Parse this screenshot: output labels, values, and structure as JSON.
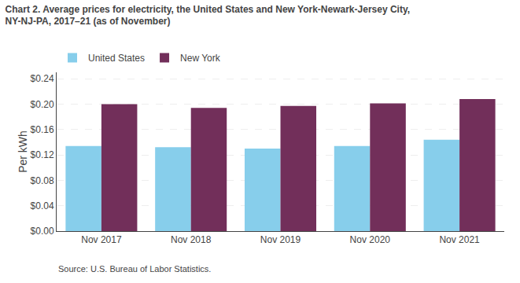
{
  "chart_data": {
    "type": "bar",
    "title": "Chart 2. Average prices for electricity, the United States and New York-Newark-Jersey City,\nNY-NJ-PA, 2017–21 (as of November)",
    "ylabel": "Per kWh",
    "source": "Source: U.S. Bureau of Labor Statistics.",
    "categories": [
      "Nov 2017",
      "Nov 2018",
      "Nov 2019",
      "Nov 2020",
      "Nov 2021"
    ],
    "series": [
      {
        "name": "United States",
        "color": "#87CEEB",
        "values": [
          0.134,
          0.132,
          0.13,
          0.134,
          0.144
        ]
      },
      {
        "name": "New York",
        "color": "#722F5A",
        "values": [
          0.2,
          0.194,
          0.197,
          0.201,
          0.208
        ]
      }
    ],
    "ylim": [
      0,
      0.25
    ],
    "yticks": [
      {
        "value": 0.0,
        "label": "$0.00"
      },
      {
        "value": 0.04,
        "label": "$0.04"
      },
      {
        "value": 0.08,
        "label": "$0.08"
      },
      {
        "value": 0.12,
        "label": "$0.12"
      },
      {
        "value": 0.16,
        "label": "$0.16"
      },
      {
        "value": 0.2,
        "label": "$0.20"
      },
      {
        "value": 0.24,
        "label": "$0.24"
      }
    ],
    "grid": true,
    "legend": "top"
  }
}
